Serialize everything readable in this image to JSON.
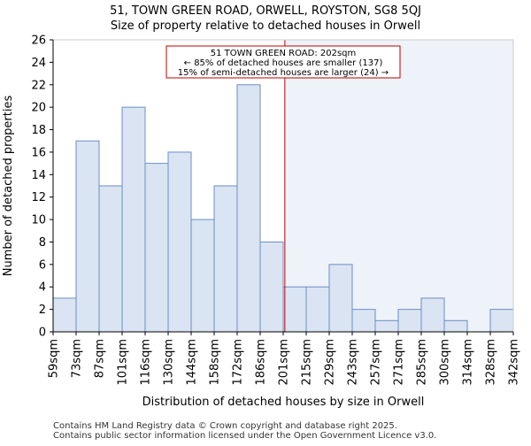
{
  "title_line1": "51, TOWN GREEN ROAD, ORWELL, ROYSTON, SG8 5QJ",
  "title_line2": "Size of property relative to detached houses in Orwell",
  "footer_line1": "Contains HM Land Registry data © Crown copyright and database right 2025.",
  "footer_line2": "Contains public sector information licensed under the Open Government Licence v3.0.",
  "colors": {
    "bar_fill": "#dae4f3",
    "bar_edge": "#6b8fc4",
    "shade": "#eef2f9",
    "marker": "#c00000",
    "annotation_edge": "#c00000"
  },
  "chart_data": {
    "type": "bar",
    "xlabel": "Distribution of detached houses by size in Orwell",
    "ylabel": "Number of detached properties",
    "ylim": [
      0,
      26
    ],
    "yticks": [
      0,
      2,
      4,
      6,
      8,
      10,
      12,
      14,
      16,
      18,
      20,
      22,
      24,
      26
    ],
    "grid": false,
    "bin_edges": [
      59,
      73,
      87,
      101,
      116,
      130,
      144,
      158,
      172,
      186,
      201,
      215,
      229,
      243,
      257,
      271,
      285,
      300,
      314,
      328,
      342
    ],
    "tick_labels": [
      "59sqm",
      "73sqm",
      "87sqm",
      "101sqm",
      "116sqm",
      "130sqm",
      "144sqm",
      "158sqm",
      "172sqm",
      "186sqm",
      "201sqm",
      "215sqm",
      "229sqm",
      "243sqm",
      "257sqm",
      "271sqm",
      "285sqm",
      "300sqm",
      "314sqm",
      "328sqm",
      "342sqm"
    ],
    "values": [
      3,
      17,
      13,
      20,
      15,
      16,
      10,
      13,
      22,
      8,
      4,
      4,
      6,
      2,
      1,
      2,
      3,
      1,
      0,
      2
    ],
    "marker_value": 202,
    "marker_label": "51 TOWN GREEN ROAD: 202sqm",
    "annotation_lines": [
      "51 TOWN GREEN ROAD: 202sqm",
      "← 85% of detached houses are smaller (137)",
      "15% of semi-detached houses are larger (24) →"
    ]
  }
}
